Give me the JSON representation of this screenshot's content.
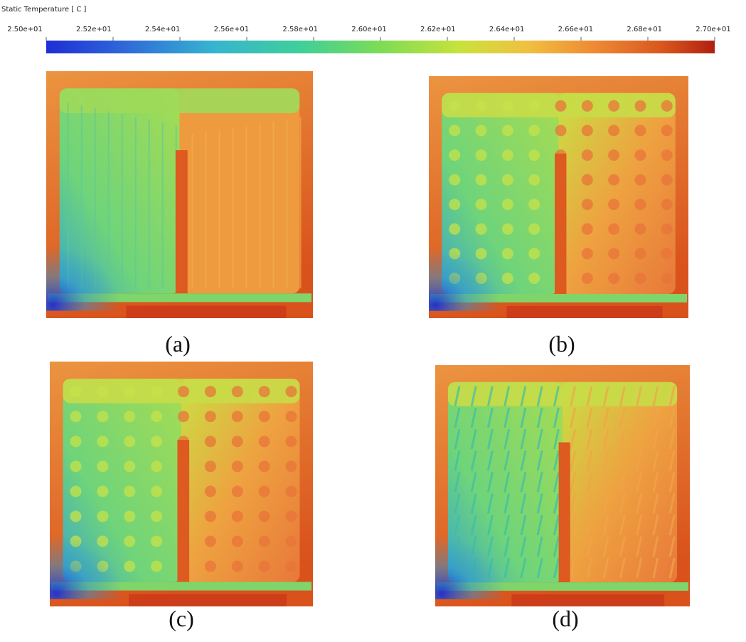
{
  "colorbar": {
    "title": "Static Temperature [ C ]",
    "range": [
      25,
      27
    ],
    "ticks": [
      {
        "value": 25,
        "label": "2.50e+01"
      },
      {
        "value": 25.2,
        "label": "2.52e+01"
      },
      {
        "value": 25.4,
        "label": "2.54e+01"
      },
      {
        "value": 25.6,
        "label": "2.56e+01"
      },
      {
        "value": 25.8,
        "label": "2.58e+01"
      },
      {
        "value": 26,
        "label": "2.60e+01"
      },
      {
        "value": 26.2,
        "label": "2.62e+01"
      },
      {
        "value": 26.4,
        "label": "2.64e+01"
      },
      {
        "value": 26.6,
        "label": "2.66e+01"
      },
      {
        "value": 26.8,
        "label": "2.68e+01"
      },
      {
        "value": 27,
        "label": "2.70e+01"
      }
    ]
  },
  "panels": [
    {
      "label": "(a)"
    },
    {
      "label": "(b)"
    },
    {
      "label": "(c)"
    },
    {
      "label": "(d)"
    }
  ]
}
